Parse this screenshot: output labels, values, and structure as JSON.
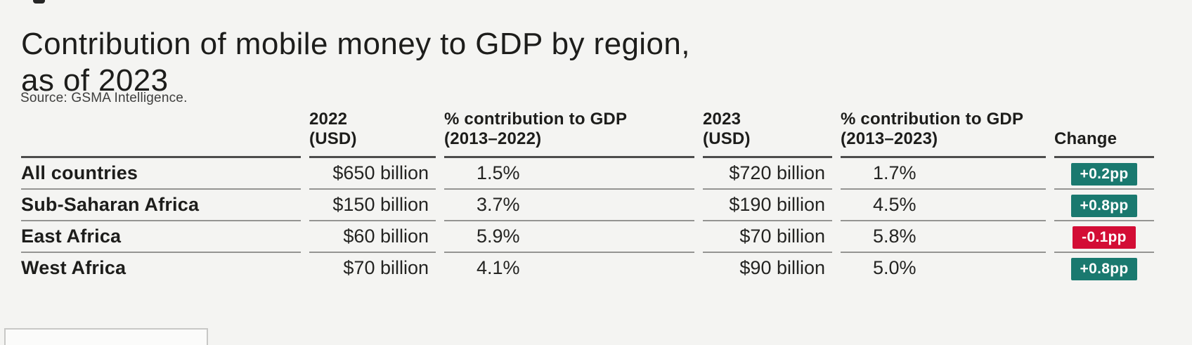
{
  "page": {
    "title": "Contribution of mobile money to GDP by region,\nas of 2023",
    "source": "Source: GSMA Intelligence."
  },
  "table": {
    "columns": [
      {
        "label": ""
      },
      {
        "label": "2022\n(USD)"
      },
      {
        "label": "% contribution to GDP\n(2013–2022)"
      },
      {
        "label": "2023\n(USD)"
      },
      {
        "label": "% contribution to GDP\n(2013–2023)"
      },
      {
        "label": "Change"
      }
    ],
    "rows": [
      {
        "region": "All countries",
        "usd_2022": "$650 billion",
        "pct_2013_2022": "1.5%",
        "usd_2023": "$720 billion",
        "pct_2013_2023": "1.7%",
        "change": "+0.2pp",
        "change_type": "positive"
      },
      {
        "region": "Sub-Saharan Africa",
        "usd_2022": "$150 billion",
        "pct_2013_2022": "3.7%",
        "usd_2023": "$190 billion",
        "pct_2013_2023": "4.5%",
        "change": "+0.8pp",
        "change_type": "positive"
      },
      {
        "region": "East Africa",
        "usd_2022": "$60 billion",
        "pct_2013_2022": "5.9%",
        "usd_2023": "$70 billion",
        "pct_2013_2023": "5.8%",
        "change": "-0.1pp",
        "change_type": "negative"
      },
      {
        "region": "West Africa",
        "usd_2022": "$70 billion",
        "pct_2013_2022": "4.1%",
        "usd_2023": "$90 billion",
        "pct_2013_2023": "5.0%",
        "change": "+0.8pp",
        "change_type": "positive"
      }
    ]
  },
  "colors": {
    "background": "#f4f4f2",
    "text": "#1d1d1b",
    "positive_badge": "#1a796f",
    "negative_badge": "#d30d35",
    "header_rule": "#4c4c4c",
    "row_rule": "#949492"
  },
  "chart_data": {
    "type": "table",
    "title": "Contribution of mobile money to GDP by region, as of 2023",
    "source": "Source: GSMA Intelligence.",
    "columns": [
      "",
      "2022 (USD)",
      "% contribution to GDP (2013–2022)",
      "2023 (USD)",
      "% contribution to GDP (2013–2023)",
      "Change"
    ],
    "rows": [
      [
        "All countries",
        "$650 billion",
        "1.5%",
        "$720 billion",
        "1.7%",
        "+0.2pp"
      ],
      [
        "Sub-Saharan Africa",
        "$150 billion",
        "3.7%",
        "$190 billion",
        "4.5%",
        "+0.8pp"
      ],
      [
        "East Africa",
        "$60 billion",
        "5.9%",
        "$70 billion",
        "5.8%",
        "-0.1pp"
      ],
      [
        "West Africa",
        "$70 billion",
        "4.1%",
        "$90 billion",
        "5.0%",
        "+0.8pp"
      ]
    ],
    "notes": {
      "change_unit": "percentage points (pp)",
      "positive_change_color": "#1a796f",
      "negative_change_color": "#d30d35"
    }
  }
}
